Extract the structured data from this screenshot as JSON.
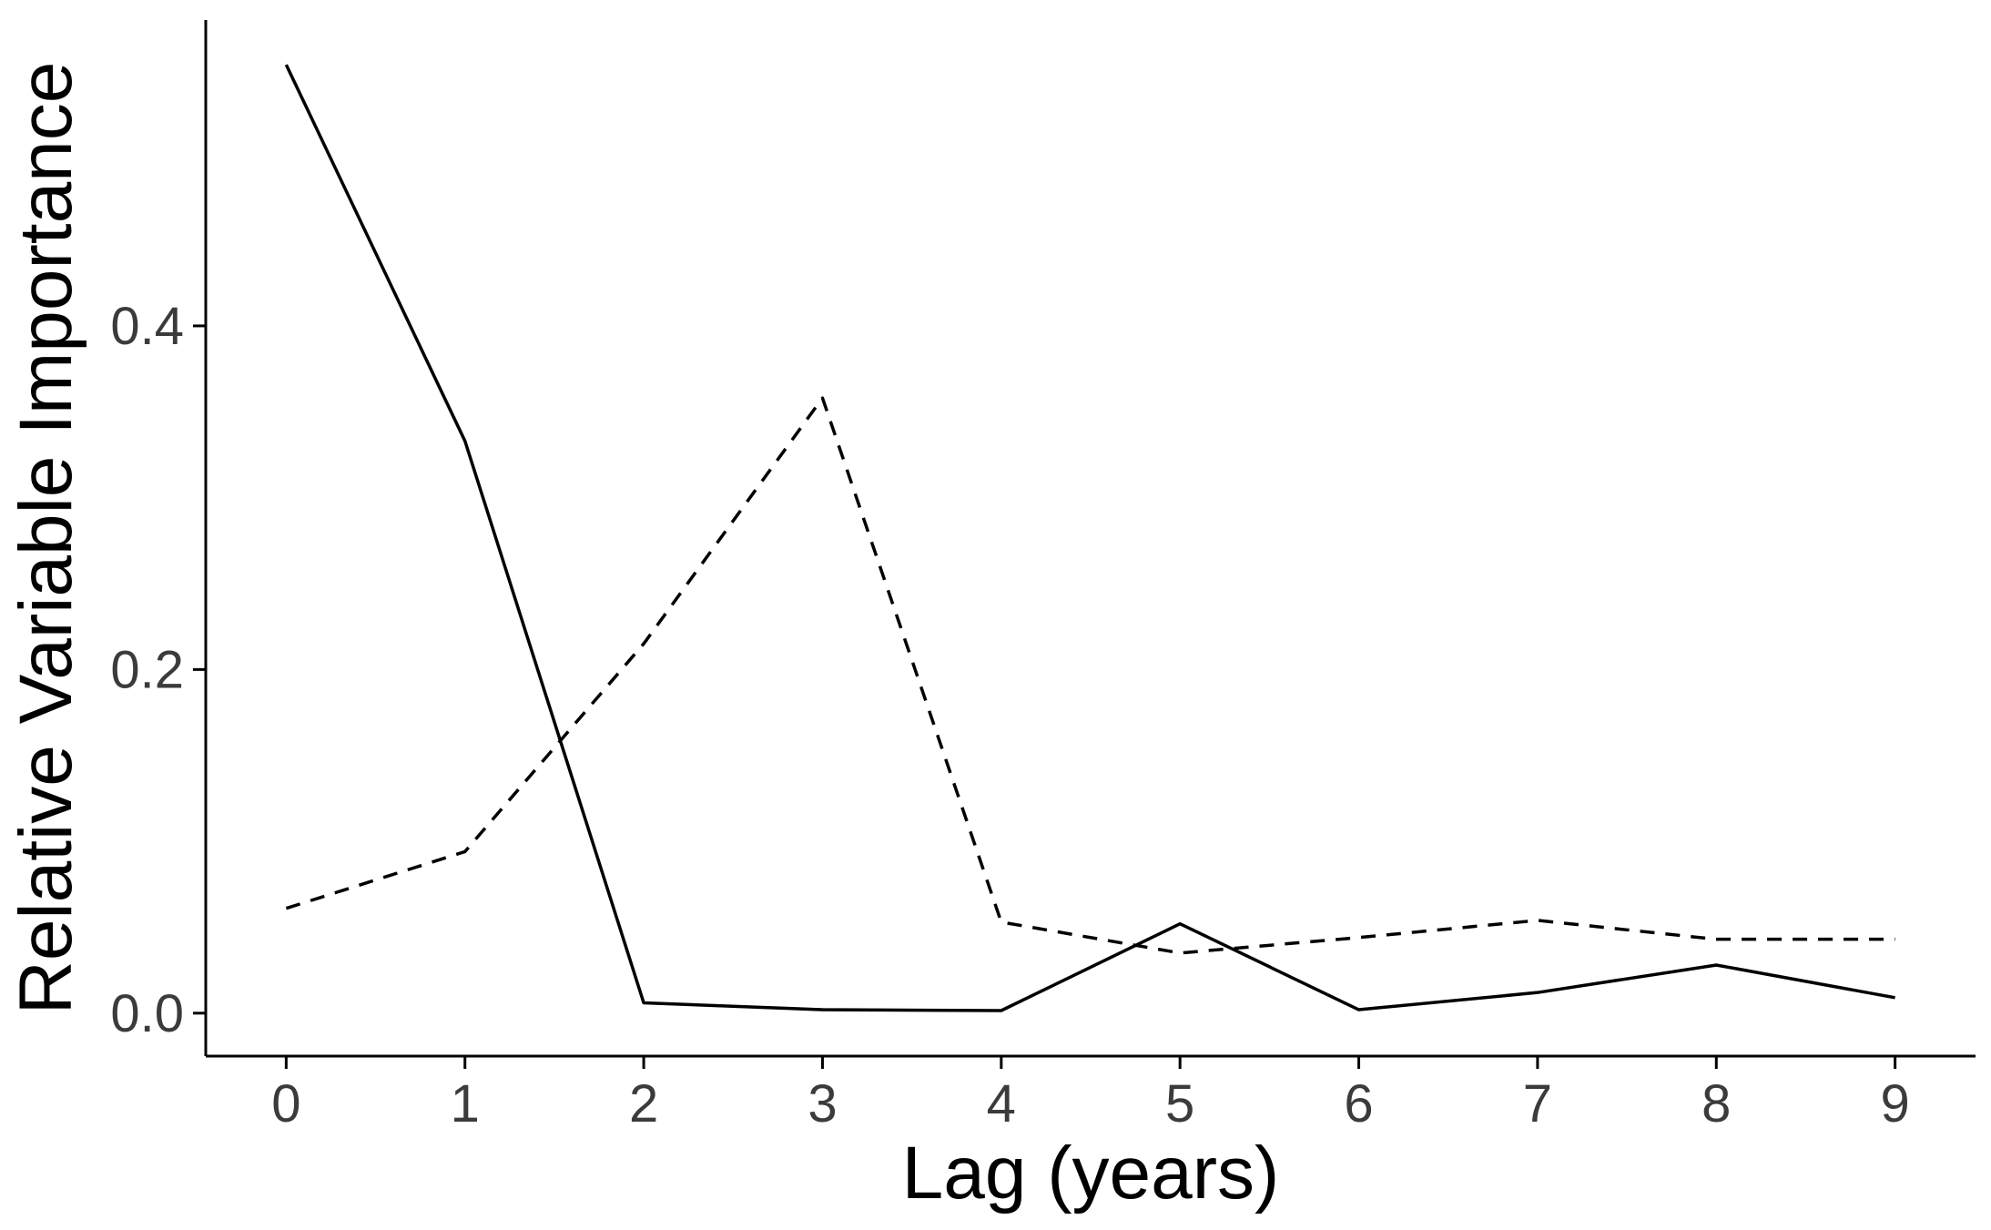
{
  "chart_data": {
    "type": "line",
    "xlabel": "Lag (years)",
    "ylabel": "Relative Variable Importance",
    "x": [
      0,
      1,
      2,
      3,
      4,
      5,
      6,
      7,
      8,
      9
    ],
    "x_ticks": [
      "0",
      "1",
      "2",
      "3",
      "4",
      "5",
      "6",
      "7",
      "8",
      "9"
    ],
    "y_ticks": [
      {
        "value": 0.0,
        "label": "0.0"
      },
      {
        "value": 0.2,
        "label": "0.2"
      },
      {
        "value": 0.4,
        "label": "0.4"
      }
    ],
    "xlim": [
      -0.45,
      9.45
    ],
    "ylim": [
      -0.025,
      0.578
    ],
    "grid": false,
    "legend": "none",
    "series": [
      {
        "style": "solid",
        "color": "#000000",
        "values": [
          0.552,
          0.333,
          0.006,
          0.002,
          0.0015,
          0.052,
          0.002,
          0.012,
          0.028,
          0.009
        ]
      },
      {
        "style": "dashed",
        "color": "#000000",
        "values": [
          0.061,
          0.094,
          0.215,
          0.358,
          0.053,
          0.035,
          0.044,
          0.054,
          0.043,
          0.043
        ]
      }
    ]
  }
}
